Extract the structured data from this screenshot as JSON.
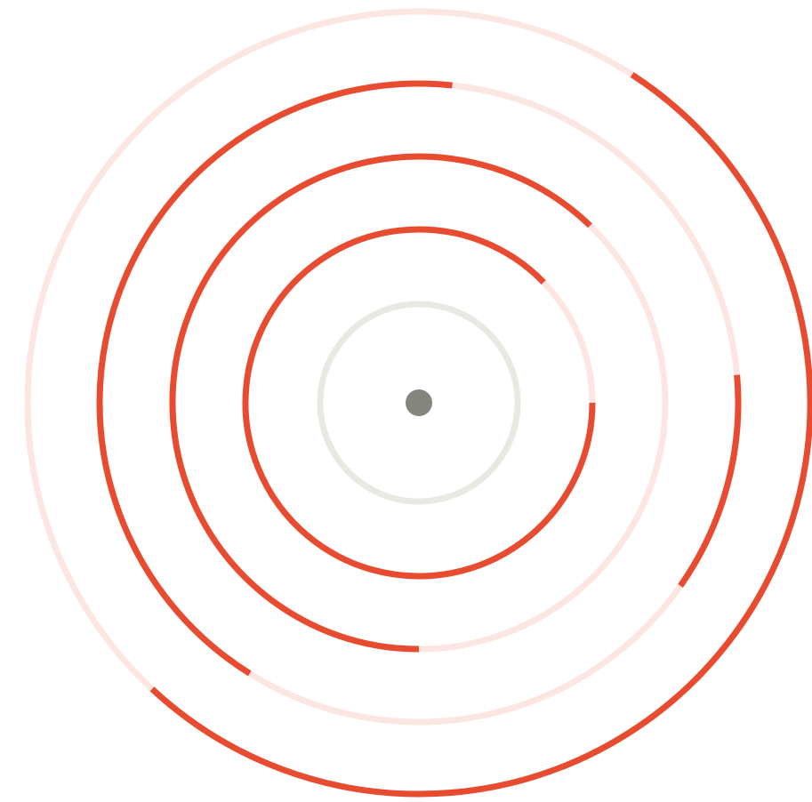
{
  "puzzle": {
    "type": "concentric-ring-maze",
    "colors": {
      "wall": "#e84c30",
      "gap_track": "#fce6e1",
      "center_ring": "#e9e9e4",
      "center_dot": "#858580",
      "background": "#ffffff"
    },
    "center_ring_index": 0,
    "rings": [
      {
        "name": "center-ring",
        "kind": "center",
        "walls": [],
        "gaps": []
      },
      {
        "name": "ring-1",
        "kind": "maze",
        "walls": [
          {
            "start_deg": 0,
            "end_deg": 316
          }
        ],
        "gaps": [
          {
            "start_deg": 316,
            "end_deg": 360
          }
        ]
      },
      {
        "name": "ring-2",
        "kind": "maze",
        "walls": [
          {
            "start_deg": 90,
            "end_deg": 314
          }
        ],
        "gaps": [
          {
            "start_deg": 314,
            "end_deg": 450
          }
        ]
      },
      {
        "name": "ring-3",
        "kind": "maze",
        "walls": [
          {
            "start_deg": -5,
            "end_deg": 35
          },
          {
            "start_deg": 122,
            "end_deg": 276
          }
        ],
        "gaps": [
          {
            "start_deg": 35,
            "end_deg": 122
          },
          {
            "start_deg": 276,
            "end_deg": 355
          }
        ]
      },
      {
        "name": "ring-4",
        "kind": "maze",
        "walls": [
          {
            "start_deg": -57,
            "end_deg": 133
          }
        ],
        "gaps": [
          {
            "start_deg": 133,
            "end_deg": 303
          }
        ]
      }
    ]
  }
}
